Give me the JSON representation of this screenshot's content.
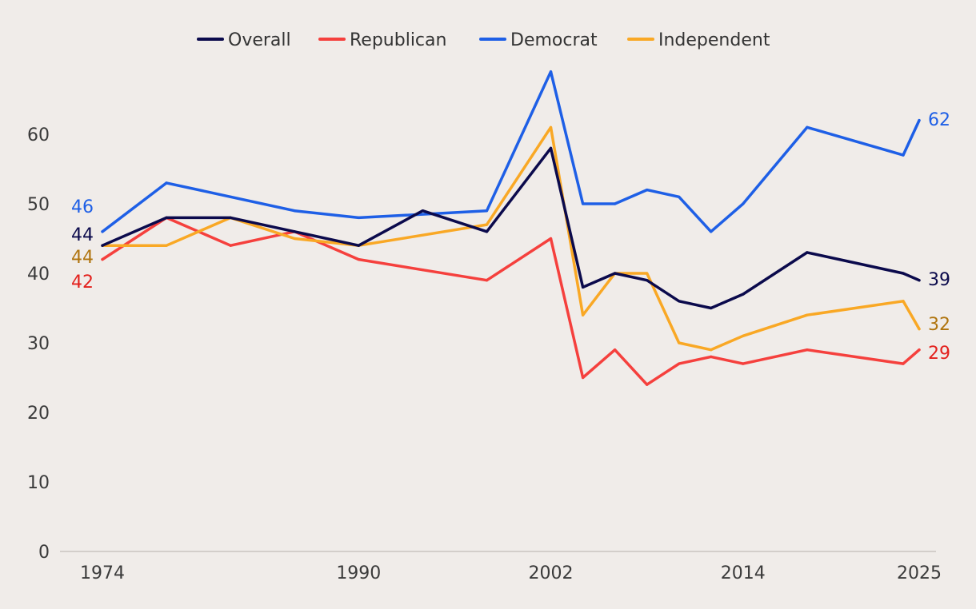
{
  "chart_data": {
    "type": "line",
    "title": "",
    "xlabel": "",
    "ylabel": "",
    "xlim": [
      1974,
      2025
    ],
    "ylim": [
      0,
      70
    ],
    "yticks": [
      0,
      10,
      20,
      30,
      40,
      50,
      60
    ],
    "xticks": [
      {
        "value": 1974,
        "label": "1974"
      },
      {
        "value": 1990,
        "label": "1990"
      },
      {
        "value": 2002,
        "label": "2002"
      },
      {
        "value": 2014,
        "label": "2014"
      },
      {
        "value": 2025,
        "label": "2025"
      }
    ],
    "legend_position": "top-center",
    "x": [
      1974,
      1978,
      1982,
      1986,
      1990,
      1994,
      1998,
      2002,
      2004,
      2006,
      2008,
      2010,
      2012,
      2014,
      2018,
      2024,
      2025
    ],
    "series": [
      {
        "name": "Overall",
        "color": "#0b0a4c",
        "label_color": "#0b0a4c",
        "values": [
          44,
          48,
          48,
          46,
          44,
          49,
          46,
          58,
          38,
          40,
          39,
          36,
          35,
          37,
          43,
          40,
          39
        ],
        "start_label": "44",
        "end_label": "39"
      },
      {
        "name": "Republican",
        "color": "#f5403d",
        "label_color": "#e3211d",
        "values": [
          42,
          48,
          44,
          46,
          42,
          40.5,
          39,
          45,
          25,
          29,
          24,
          27,
          28,
          27,
          29,
          27,
          29
        ],
        "start_label": "42",
        "end_label": "29"
      },
      {
        "name": "Democrat",
        "color": "#1e5fe6",
        "label_color": "#1e5fe6",
        "values": [
          46,
          53,
          51,
          49,
          48,
          48.5,
          49,
          69,
          50,
          50,
          52,
          51,
          46,
          50,
          61,
          57,
          62
        ],
        "start_label": "46",
        "end_label": "62"
      },
      {
        "name": "Independent",
        "color": "#f9a825",
        "label_color": "#b07510",
        "values": [
          44,
          44,
          48,
          45,
          44,
          45.5,
          47,
          61,
          34,
          40,
          40,
          30,
          29,
          31,
          34,
          36,
          32
        ],
        "start_label": "44",
        "end_label": "32"
      }
    ]
  }
}
